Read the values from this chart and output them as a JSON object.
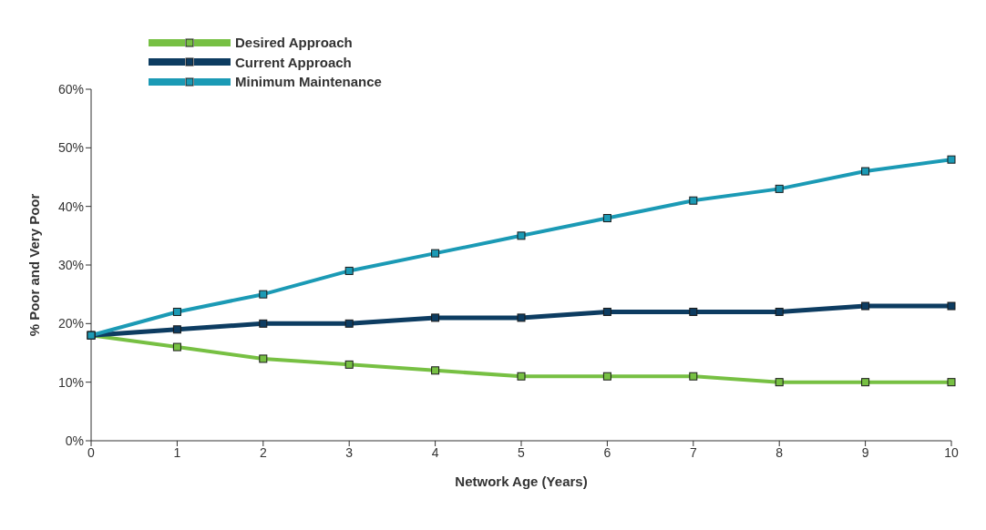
{
  "chart_data": {
    "type": "line",
    "xlabel": "Network Age (Years)",
    "ylabel": "% Poor and Very Poor",
    "categories": [
      "0",
      "1",
      "2",
      "3",
      "4",
      "5",
      "6",
      "7",
      "8",
      "9",
      "10"
    ],
    "series": [
      {
        "name": "Desired Approach",
        "color": "#77c043",
        "values": [
          18,
          16,
          14,
          13,
          12,
          11,
          11,
          11,
          10,
          10,
          10
        ]
      },
      {
        "name": "Current Approach",
        "color": "#0d3c61",
        "values": [
          18,
          19,
          20,
          20,
          21,
          21,
          22,
          22,
          22,
          23,
          23
        ]
      },
      {
        "name": "Minimum Maintenance",
        "color": "#1b9ab5",
        "values": [
          18,
          22,
          25,
          29,
          32,
          35,
          38,
          41,
          43,
          46,
          48
        ]
      }
    ],
    "ylim": [
      0,
      60
    ],
    "yticks": [
      {
        "value": 0,
        "label": "0%"
      },
      {
        "value": 10,
        "label": "10%"
      },
      {
        "value": 20,
        "label": "20%"
      },
      {
        "value": 30,
        "label": "30%"
      },
      {
        "value": 40,
        "label": "40%"
      },
      {
        "value": 50,
        "label": "50%"
      },
      {
        "value": 60,
        "label": "60%"
      }
    ],
    "grid": false,
    "legend": "top left",
    "marker": "square",
    "line_style": "solid"
  }
}
